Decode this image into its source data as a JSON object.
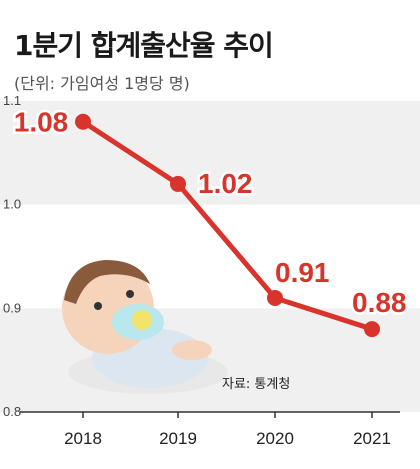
{
  "title": "1분기 합계출산율 추이",
  "subtitle": "(단위: 가임여성 1명당 명)",
  "source": "자료: 통계청",
  "colors": {
    "line": "#d9342b",
    "band": "#f0f0f0",
    "axis": "#333333"
  },
  "chart_data": {
    "type": "line",
    "title": "1분기 합계출산율 추이",
    "unit": "(단위: 가임여성 1명당 명)",
    "x": [
      "2018",
      "2019",
      "2020",
      "2021"
    ],
    "series": [
      {
        "values": [
          1.08,
          1.02,
          0.91,
          0.88
        ]
      }
    ],
    "data_labels": [
      "1.08",
      "1.02",
      "0.91",
      "0.88"
    ],
    "yticks": [
      "1.1",
      "1.0",
      "0.9",
      "0.8"
    ],
    "ylim": [
      0.8,
      1.1
    ],
    "grid": true,
    "legend": "none"
  }
}
